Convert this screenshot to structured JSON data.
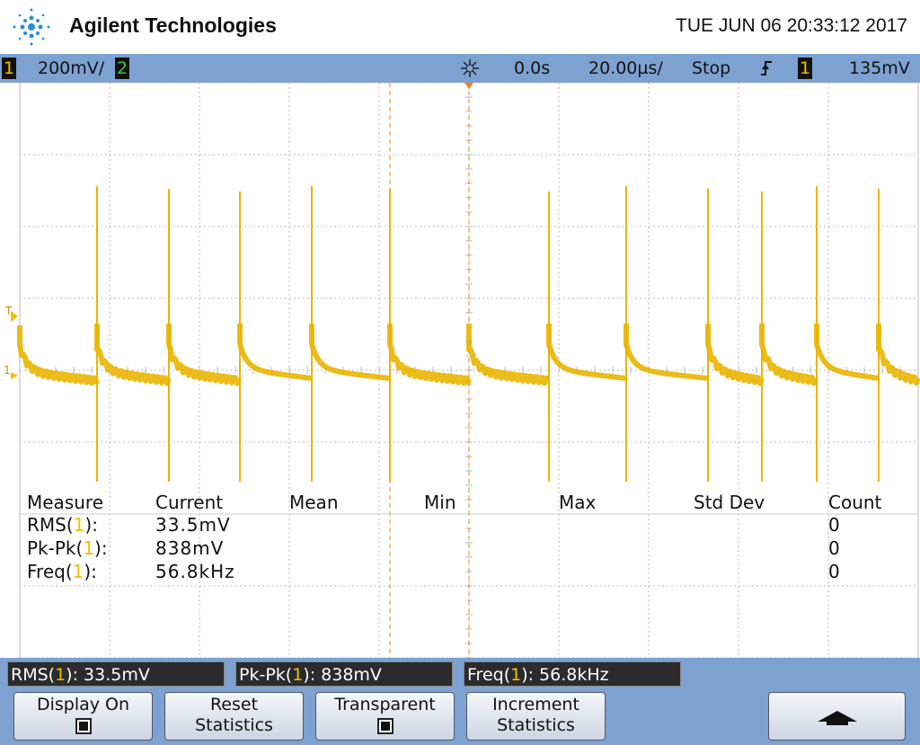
{
  "header": {
    "brand": "Agilent Technologies",
    "datetime": "TUE JUN 06 20:33:12 2017"
  },
  "status_bar": {
    "channel1": "1",
    "ch1_scale": "200mV/",
    "channel2": "2",
    "delay": "0.0s",
    "timebase": "20.00µs/",
    "run_state": "Stop",
    "trigger_source": "1",
    "trigger_level": "135mV"
  },
  "markers": {
    "trigger": "T",
    "channel": "1"
  },
  "measurements": {
    "headers": [
      "Measure",
      "Current",
      "Mean",
      "Min",
      "Max",
      "Std Dev",
      "Count"
    ],
    "rows": [
      {
        "label": [
          "RMS(",
          "1",
          "):"
        ],
        "current": "33.5mV",
        "count": "0"
      },
      {
        "label": [
          "Pk-Pk(",
          "1",
          "):"
        ],
        "current": "838mV",
        "count": "0"
      },
      {
        "label": [
          "Freq(",
          "1",
          "):"
        ],
        "current": "56.8kHz",
        "count": "0"
      }
    ]
  },
  "readouts": [
    [
      "RMS(",
      "1",
      "): 33.5mV"
    ],
    [
      "Pk-Pk(",
      "1",
      "): 838mV"
    ],
    [
      "Freq(",
      "1",
      "): 56.8kHz"
    ]
  ],
  "softkeys": [
    [
      "Display On"
    ],
    [
      "Reset",
      "Statistics"
    ],
    [
      "Transparent"
    ],
    [
      "Increment",
      "Statistics"
    ]
  ]
}
